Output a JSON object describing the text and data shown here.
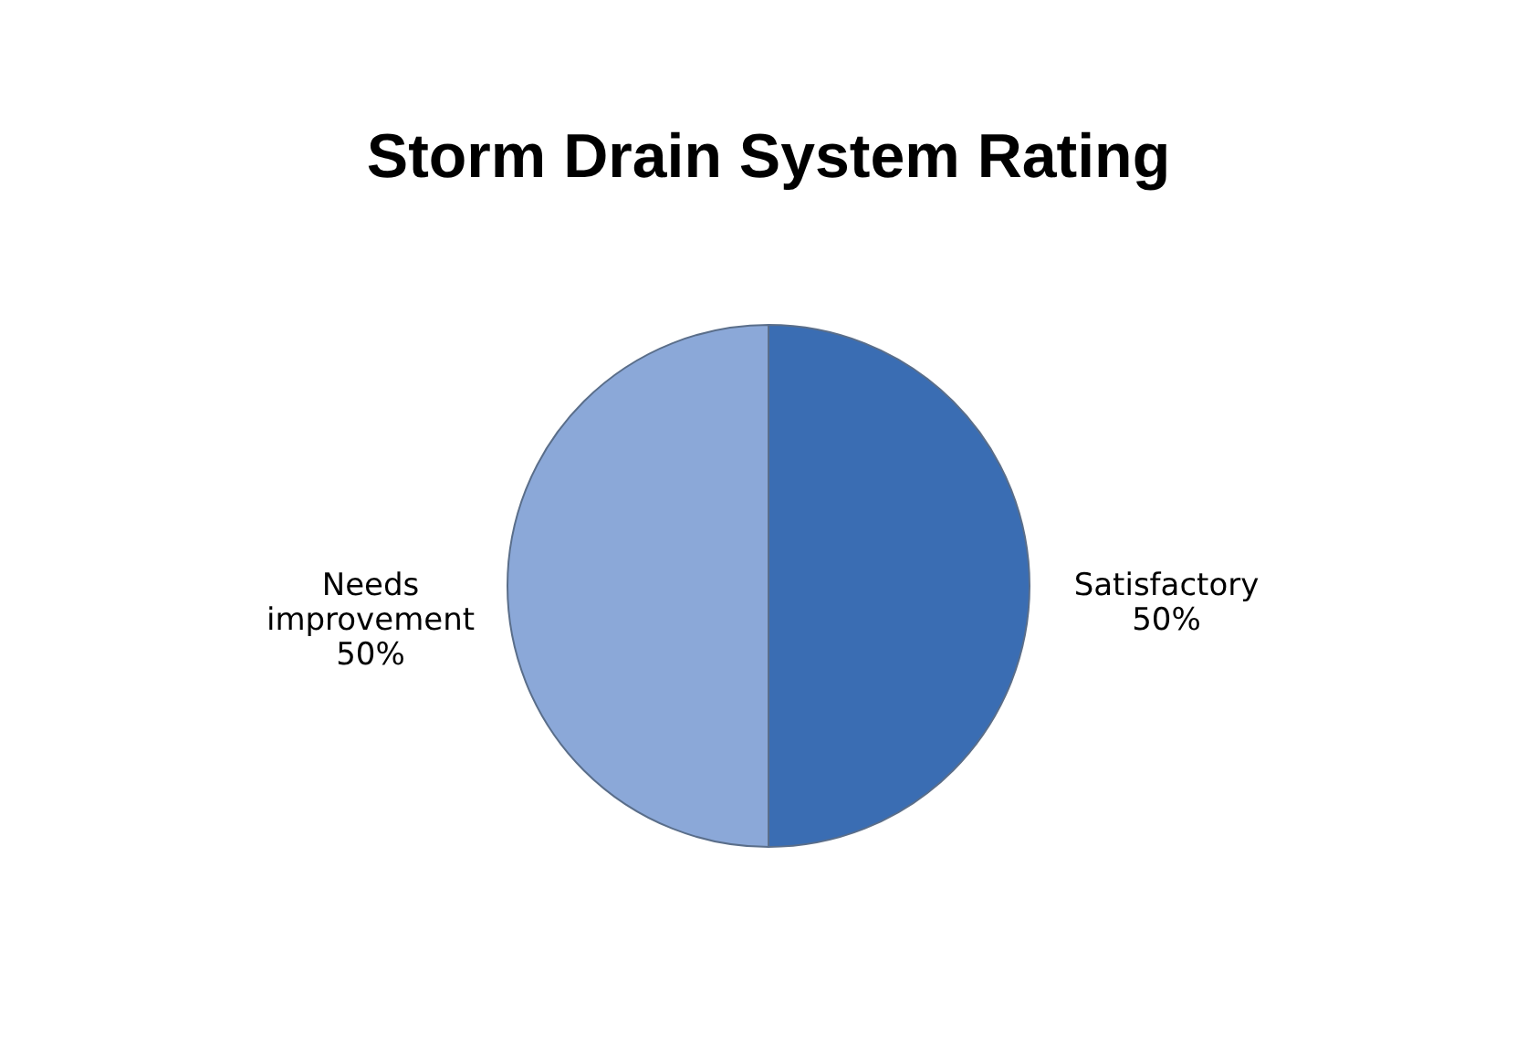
{
  "chart_data": {
    "type": "pie",
    "title": "Storm Drain System Rating",
    "categories": [
      "Satisfactory",
      "Needs improvement"
    ],
    "values": [
      50,
      50
    ],
    "colors": [
      "#3a6db3",
      "#8ba8d8"
    ],
    "value_labels": [
      "50%",
      "50%"
    ],
    "legend": false
  }
}
